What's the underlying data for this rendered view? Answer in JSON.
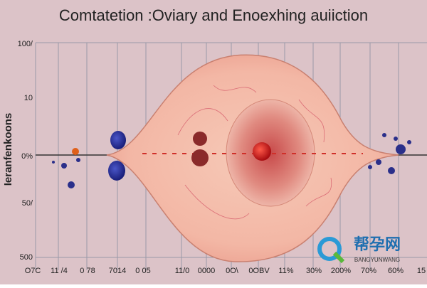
{
  "title": "Comtatetion :Oviary and Enoexhing auiiction",
  "y_axis": {
    "label": "Ieranfenkoons",
    "tick_labels": [
      "100/",
      "10",
      "0%",
      "50/",
      "500"
    ]
  },
  "x_axis": {
    "tick_labels": [
      "O7C",
      "11 /4",
      "0 78",
      "7014",
      "0 05",
      "11/0",
      "0000",
      "0O\\",
      "0OBV",
      "11%",
      "30%",
      "200%",
      "70%",
      "60%",
      "15"
    ]
  },
  "watermark": {
    "name": "帮孕网",
    "sub": "BANGYUNWANG"
  }
}
